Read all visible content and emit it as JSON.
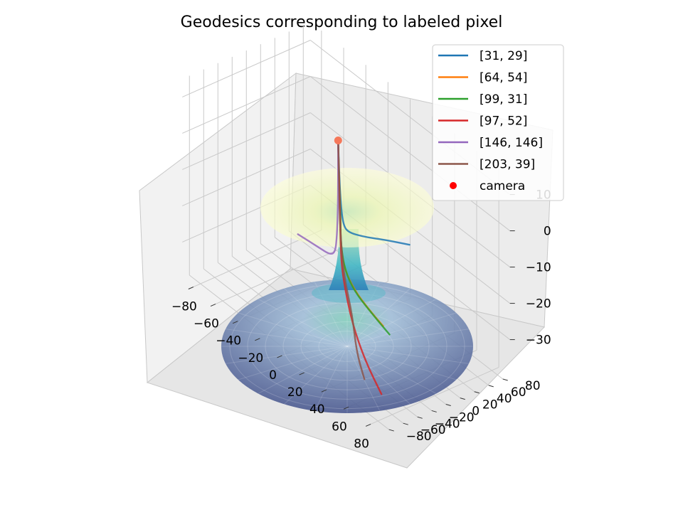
{
  "chart_data": {
    "type": "line",
    "title": "Geodesics corresponding to labeled pixel",
    "projection": "3d",
    "grid": true,
    "legend_placement": "upper-right",
    "xlim": [
      -90,
      90
    ],
    "ylim": [
      -90,
      90
    ],
    "zlim": [
      -40,
      15
    ],
    "x_ticks": [
      "−80",
      "−60",
      "−40",
      "−20",
      "0",
      "20",
      "40",
      "60",
      "80"
    ],
    "y_ticks": [
      "−80",
      "−60",
      "−40",
      "−20",
      "0",
      "20",
      "40",
      "60",
      "80"
    ],
    "z_ticks": [
      "10",
      "0",
      "−10",
      "−20",
      "−30"
    ],
    "surface": {
      "type": "wormhole",
      "colormap": "YlGnBu",
      "top_color": "#f7fcc4",
      "neck_color": "#41b6c4",
      "bottom_color": "#253494"
    },
    "camera": {
      "name": "camera",
      "color": "#ff0000",
      "x": -20,
      "y": 20,
      "z": 5
    },
    "series": [
      {
        "name": "[31, 29]",
        "color": "#1f77b4",
        "points": [
          [
            -20,
            20,
            5
          ],
          [
            -18,
            18,
            -2
          ],
          [
            -14,
            14,
            -10
          ],
          [
            -8,
            8,
            -14
          ],
          [
            0,
            2,
            -14
          ],
          [
            20,
            -5,
            -10
          ],
          [
            45,
            -15,
            -4
          ],
          [
            70,
            -20,
            1
          ]
        ]
      },
      {
        "name": "[64, 54]",
        "color": "#ff7f0e",
        "points": [
          [
            -20,
            20,
            5
          ],
          [
            -18,
            18,
            -5
          ],
          [
            -14,
            14,
            -15
          ],
          [
            -10,
            8,
            -20
          ],
          [
            -2,
            0,
            -24
          ],
          [
            12,
            -8,
            -26
          ],
          [
            30,
            -14,
            -27
          ],
          [
            45,
            -18,
            -27.5
          ]
        ]
      },
      {
        "name": "[99, 31]",
        "color": "#2ca02c",
        "points": [
          [
            -20,
            20,
            5
          ],
          [
            -18,
            18,
            -5
          ],
          [
            -14,
            14,
            -15
          ],
          [
            -10,
            8,
            -20
          ],
          [
            0,
            -2,
            -24
          ],
          [
            14,
            -10,
            -26
          ],
          [
            34,
            -16,
            -27
          ],
          [
            52,
            -20,
            -28
          ]
        ]
      },
      {
        "name": "[97, 52]",
        "color": "#d62728",
        "points": [
          [
            -20,
            20,
            5
          ],
          [
            -18,
            18,
            -5
          ],
          [
            -15,
            15,
            -15
          ],
          [
            -11,
            10,
            -25
          ],
          [
            -3,
            2,
            -29
          ],
          [
            15,
            -15,
            -34
          ],
          [
            40,
            -35,
            -37
          ],
          [
            64,
            -50,
            -39
          ]
        ]
      },
      {
        "name": "[146, 146]",
        "color": "#9467bd",
        "points": [
          [
            -20,
            20,
            5
          ],
          [
            -20,
            20,
            -5
          ],
          [
            -21,
            21,
            -15
          ],
          [
            -23,
            23,
            -22
          ],
          [
            -27,
            27,
            -28
          ],
          [
            -40,
            40,
            -33
          ],
          [
            -60,
            55,
            -37
          ],
          [
            -82,
            60,
            -39
          ]
        ]
      },
      {
        "name": "[203, 39]",
        "color": "#8c564b",
        "points": [
          [
            -20,
            20,
            5
          ],
          [
            -18,
            18,
            -5
          ],
          [
            -16,
            16,
            -15
          ],
          [
            -12,
            12,
            -22
          ],
          [
            -4,
            4,
            -28
          ],
          [
            12,
            -10,
            -33
          ],
          [
            30,
            -32,
            -37
          ],
          [
            46,
            -46,
            -39.5
          ]
        ]
      }
    ]
  }
}
